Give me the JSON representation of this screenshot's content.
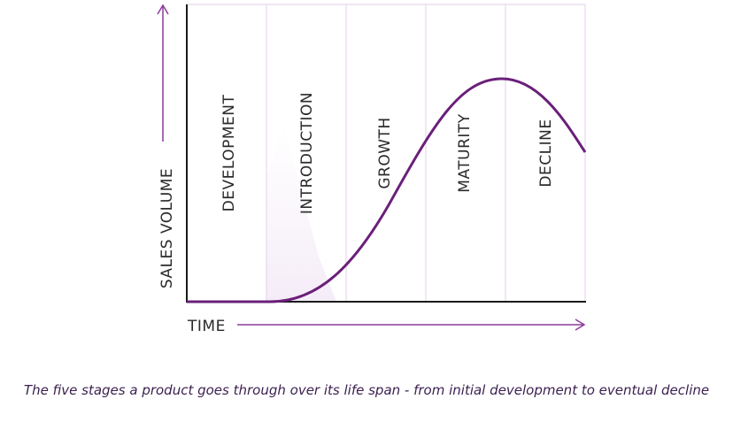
{
  "stages": [
    "DEVELOPMENT",
    "INTRODUCTION",
    "GROWTH",
    "MATURITY",
    "DECLINE"
  ],
  "y_axis": "SALES VOLUME",
  "x_axis": "TIME",
  "caption": "The five stages a product goes through over its life span - from initial development to eventual decline"
}
